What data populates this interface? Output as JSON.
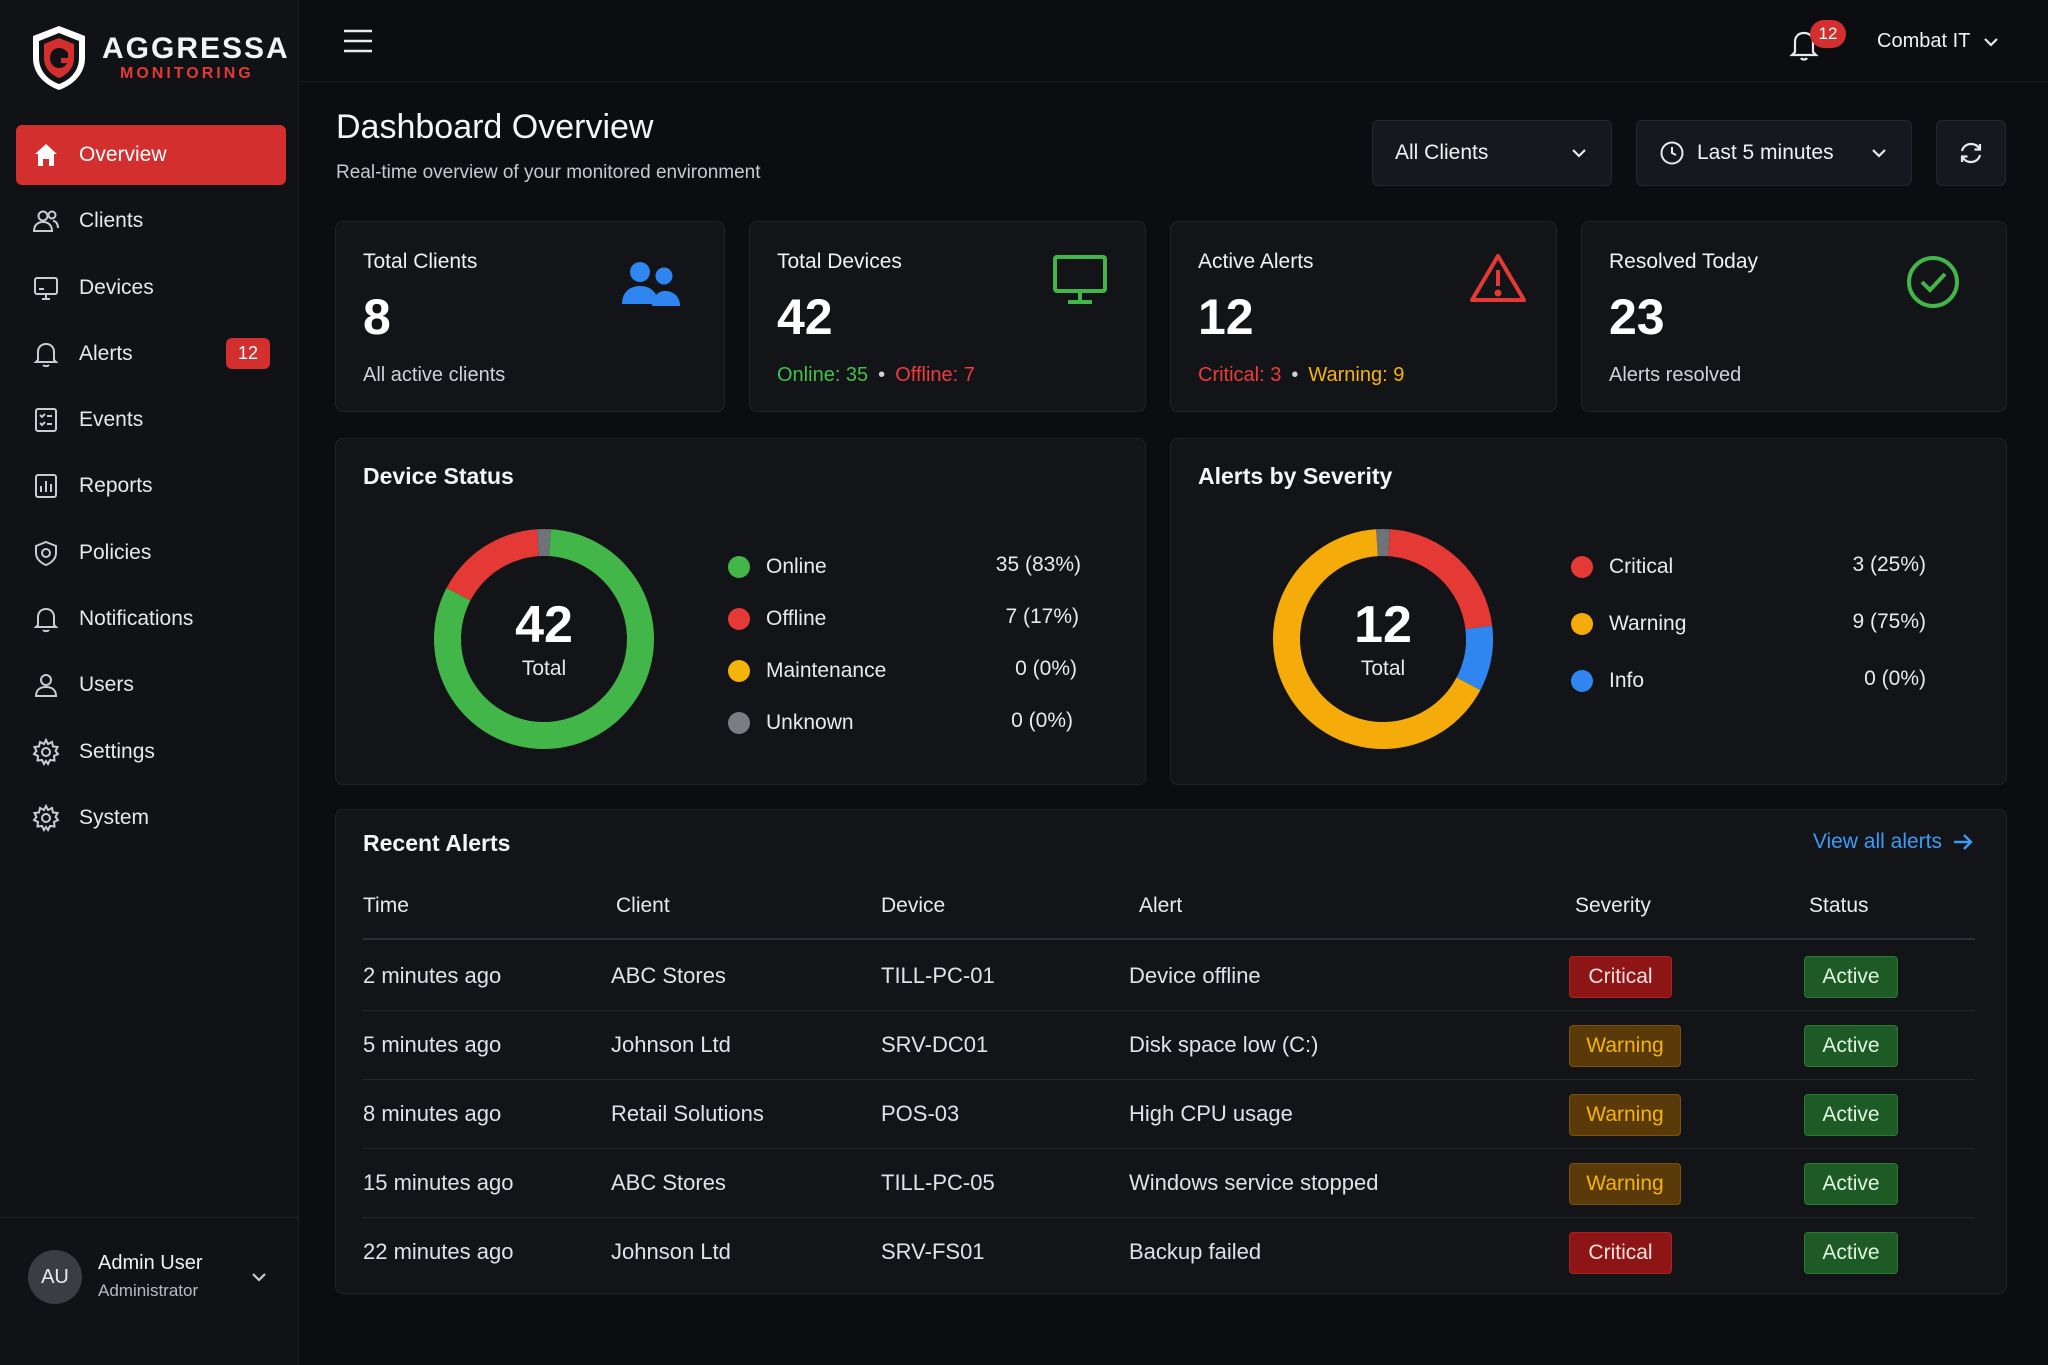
{
  "brand": {
    "name": "AGGRESSA",
    "subtitle": "MONITORING",
    "accent": "#d32f2f"
  },
  "sidebar": {
    "items": [
      {
        "label": "Overview",
        "icon": "home-icon",
        "active": true
      },
      {
        "label": "Clients",
        "icon": "users-icon"
      },
      {
        "label": "Devices",
        "icon": "monitor-icon"
      },
      {
        "label": "Alerts",
        "icon": "bell-icon",
        "badge": "12"
      },
      {
        "label": "Events",
        "icon": "events-icon"
      },
      {
        "label": "Reports",
        "icon": "reports-icon"
      },
      {
        "label": "Policies",
        "icon": "shield-icon"
      },
      {
        "label": "Notifications",
        "icon": "bell-icon"
      },
      {
        "label": "Users",
        "icon": "user-icon"
      },
      {
        "label": "Settings",
        "icon": "gear-icon"
      },
      {
        "label": "System",
        "icon": "gear-icon"
      }
    ],
    "user": {
      "initials": "AU",
      "name": "Admin User",
      "role": "Administrator"
    }
  },
  "topbar": {
    "notification_count": "12",
    "org": "Combat IT"
  },
  "header": {
    "title": "Dashboard Overview",
    "subtitle": "Real-time overview of your monitored environment",
    "client_filter": "All Clients",
    "time_filter": "Last 5 minutes"
  },
  "stats": {
    "total_clients": {
      "title": "Total Clients",
      "value": "8",
      "sub": "All active clients"
    },
    "total_devices": {
      "title": "Total Devices",
      "value": "42",
      "online": "Online: 35",
      "offline": "Offline: 7"
    },
    "active_alerts": {
      "title": "Active Alerts",
      "value": "12",
      "critical": "Critical: 3",
      "warning": "Warning: 9"
    },
    "resolved_today": {
      "title": "Resolved Today",
      "value": "23",
      "sub": "Alerts resolved"
    }
  },
  "device_status": {
    "title": "Device Status",
    "center_value": "42",
    "center_label": "Total",
    "legend": [
      {
        "name": "Online",
        "value": "35 (83%)",
        "count": 35,
        "color": "#43b649"
      },
      {
        "name": "Offline",
        "value": "7 (17%)",
        "count": 7,
        "color": "#e53935"
      },
      {
        "name": "Maintenance",
        "value": "0 (0%)",
        "count": 0,
        "color": "#f5b40a"
      },
      {
        "name": "Unknown",
        "value": "0 (0%)",
        "count": 0,
        "color": "#7a7d82"
      }
    ]
  },
  "alerts_by_severity": {
    "title": "Alerts by Severity",
    "center_value": "12",
    "center_label": "Total",
    "legend": [
      {
        "name": "Critical",
        "value": "3 (25%)",
        "count": 3,
        "color": "#e53935"
      },
      {
        "name": "Warning",
        "value": "9 (75%)",
        "count": 9,
        "color": "#f5ac0a"
      },
      {
        "name": "Info",
        "value": "0 (0%)",
        "count": 0,
        "color": "#2f86f0"
      }
    ]
  },
  "recent_alerts": {
    "title": "Recent Alerts",
    "view_all": "View all alerts",
    "columns": [
      "Time",
      "Client",
      "Device",
      "Alert",
      "Severity",
      "Status"
    ],
    "rows": [
      {
        "time": "2 minutes ago",
        "client": "ABC Stores",
        "device": "TILL-PC-01",
        "alert": "Device offline",
        "severity": "Critical",
        "status": "Active"
      },
      {
        "time": "5 minutes ago",
        "client": "Johnson Ltd",
        "device": "SRV-DC01",
        "alert": "Disk space low (C:)",
        "severity": "Warning",
        "status": "Active"
      },
      {
        "time": "8 minutes ago",
        "client": "Retail Solutions",
        "device": "POS-03",
        "alert": "High CPU usage",
        "severity": "Warning",
        "status": "Active"
      },
      {
        "time": "15 minutes ago",
        "client": "ABC Stores",
        "device": "TILL-PC-05",
        "alert": "Windows service stopped",
        "severity": "Warning",
        "status": "Active"
      },
      {
        "time": "22 minutes ago",
        "client": "Johnson Ltd",
        "device": "SRV-FS01",
        "alert": "Backup failed",
        "severity": "Critical",
        "status": "Active"
      }
    ]
  }
}
